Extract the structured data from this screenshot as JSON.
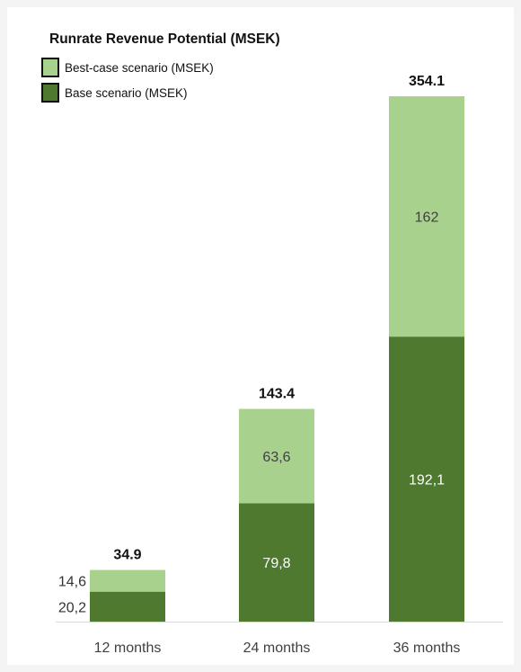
{
  "chart_data": {
    "type": "bar",
    "stacked": true,
    "title": "Runrate Revenue Potential (MSEK)",
    "categories": [
      "12 months",
      "24 months",
      "36 months"
    ],
    "series": [
      {
        "name": "Base scenario (MSEK)",
        "values": [
          20.2,
          79.8,
          192.1
        ],
        "labels": [
          "20,2",
          "79,8",
          "192,1"
        ],
        "color": "#4e792f"
      },
      {
        "name": "Best-case scenario (MSEK)",
        "values": [
          14.6,
          63.6,
          162
        ],
        "labels": [
          "14,6",
          "63,6",
          "162"
        ],
        "color": "#a9d18e"
      }
    ],
    "totals": [
      34.9,
      143.4,
      354.1
    ],
    "total_labels": [
      "34.9",
      "143.4",
      "354.1"
    ],
    "ylim": [
      0,
      354.1
    ],
    "grid": false,
    "legend_position": "top-left"
  }
}
